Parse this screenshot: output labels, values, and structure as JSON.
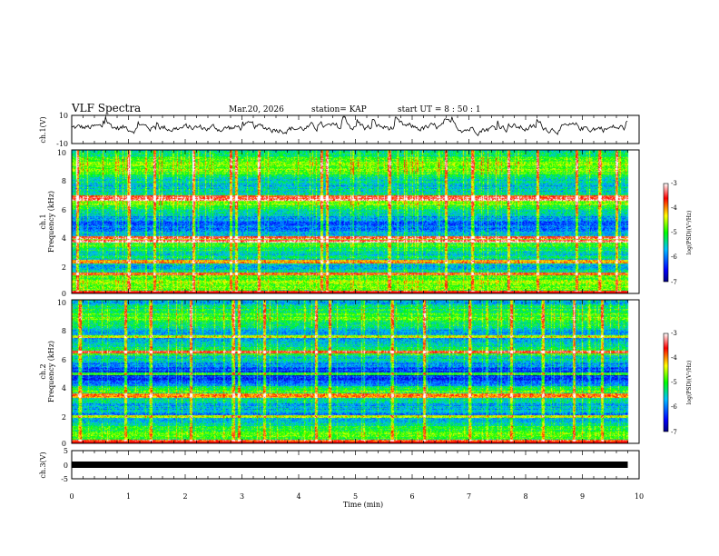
{
  "header": {
    "title": "VLF Spectra",
    "date": "Mar.20, 2026",
    "station": "station= KAP",
    "start": "start  UT  =   8  : 50 : 1"
  },
  "chart_data": [
    {
      "type": "line",
      "name": "ch1-waveform",
      "ylabel": "ch.1(V)",
      "ylim": [
        -10,
        10
      ],
      "yticks": [
        "10",
        "-10"
      ],
      "xlim": [
        0,
        10
      ],
      "trend": "noisy waveform around +1 V, peaks near +8 V"
    },
    {
      "type": "heatmap",
      "name": "ch1-spectrogram",
      "ylabel": "ch.1\nFrequency (kHz)",
      "ylabel_lines": [
        "ch.1",
        "Frequency (kHz)"
      ],
      "ylim": [
        0,
        10
      ],
      "yticks": [
        "10",
        "8",
        "6",
        "4",
        "2",
        "0"
      ],
      "colorbar": {
        "label": "log(PSD)(V²/Hz)",
        "range": [
          -7,
          -3
        ],
        "ticks": [
          "-3",
          "-4",
          "-5",
          "-6",
          "-7"
        ]
      },
      "bands_khz": [
        6.6,
        6.8,
        3.9,
        3.7,
        2.2,
        2.3,
        1.4,
        0.15
      ],
      "strong_times_min": [
        0.1,
        1.0,
        1.45,
        2.15,
        2.8,
        2.9,
        3.3,
        4.4,
        4.5,
        5.6,
        6.6,
        7.05,
        7.7,
        8.2,
        8.9,
        9.3,
        9.6
      ]
    },
    {
      "type": "heatmap",
      "name": "ch2-spectrogram",
      "ylabel": "ch.2\nFrequency (kHz)",
      "ylabel_lines": [
        "ch.2",
        "Frequency (kHz)"
      ],
      "ylim": [
        0,
        10
      ],
      "yticks": [
        "10",
        "8",
        "6",
        "4",
        "2",
        "0"
      ],
      "colorbar": {
        "label": "log(PSD)(V²/Hz)",
        "range": [
          -7,
          -3
        ],
        "ticks": [
          "-3",
          "-4",
          "-5",
          "-6",
          "-7"
        ]
      },
      "bands_khz": [
        7.5,
        6.4,
        4.9,
        3.4,
        3.3,
        1.9,
        0.2
      ],
      "strong_times_min": [
        0.15,
        0.95,
        1.4,
        2.1,
        2.85,
        2.95,
        3.4,
        4.3,
        4.55,
        5.65,
        6.2,
        7.0,
        7.75,
        8.3,
        8.85,
        9.35
      ]
    },
    {
      "type": "line",
      "name": "ch3-waveform",
      "ylabel": "ch.3(V)",
      "ylim": [
        -5,
        5
      ],
      "yticks": [
        "5",
        "0",
        "-5"
      ],
      "xlim": [
        0,
        10
      ],
      "trend": "flat thick line at about 0 V"
    }
  ],
  "xaxis": {
    "label": "Time  (min)",
    "range": [
      0,
      10
    ],
    "data_end": 9.8,
    "ticks": [
      "0",
      "1",
      "2",
      "3",
      "4",
      "5",
      "6",
      "7",
      "8",
      "9",
      "10"
    ]
  }
}
